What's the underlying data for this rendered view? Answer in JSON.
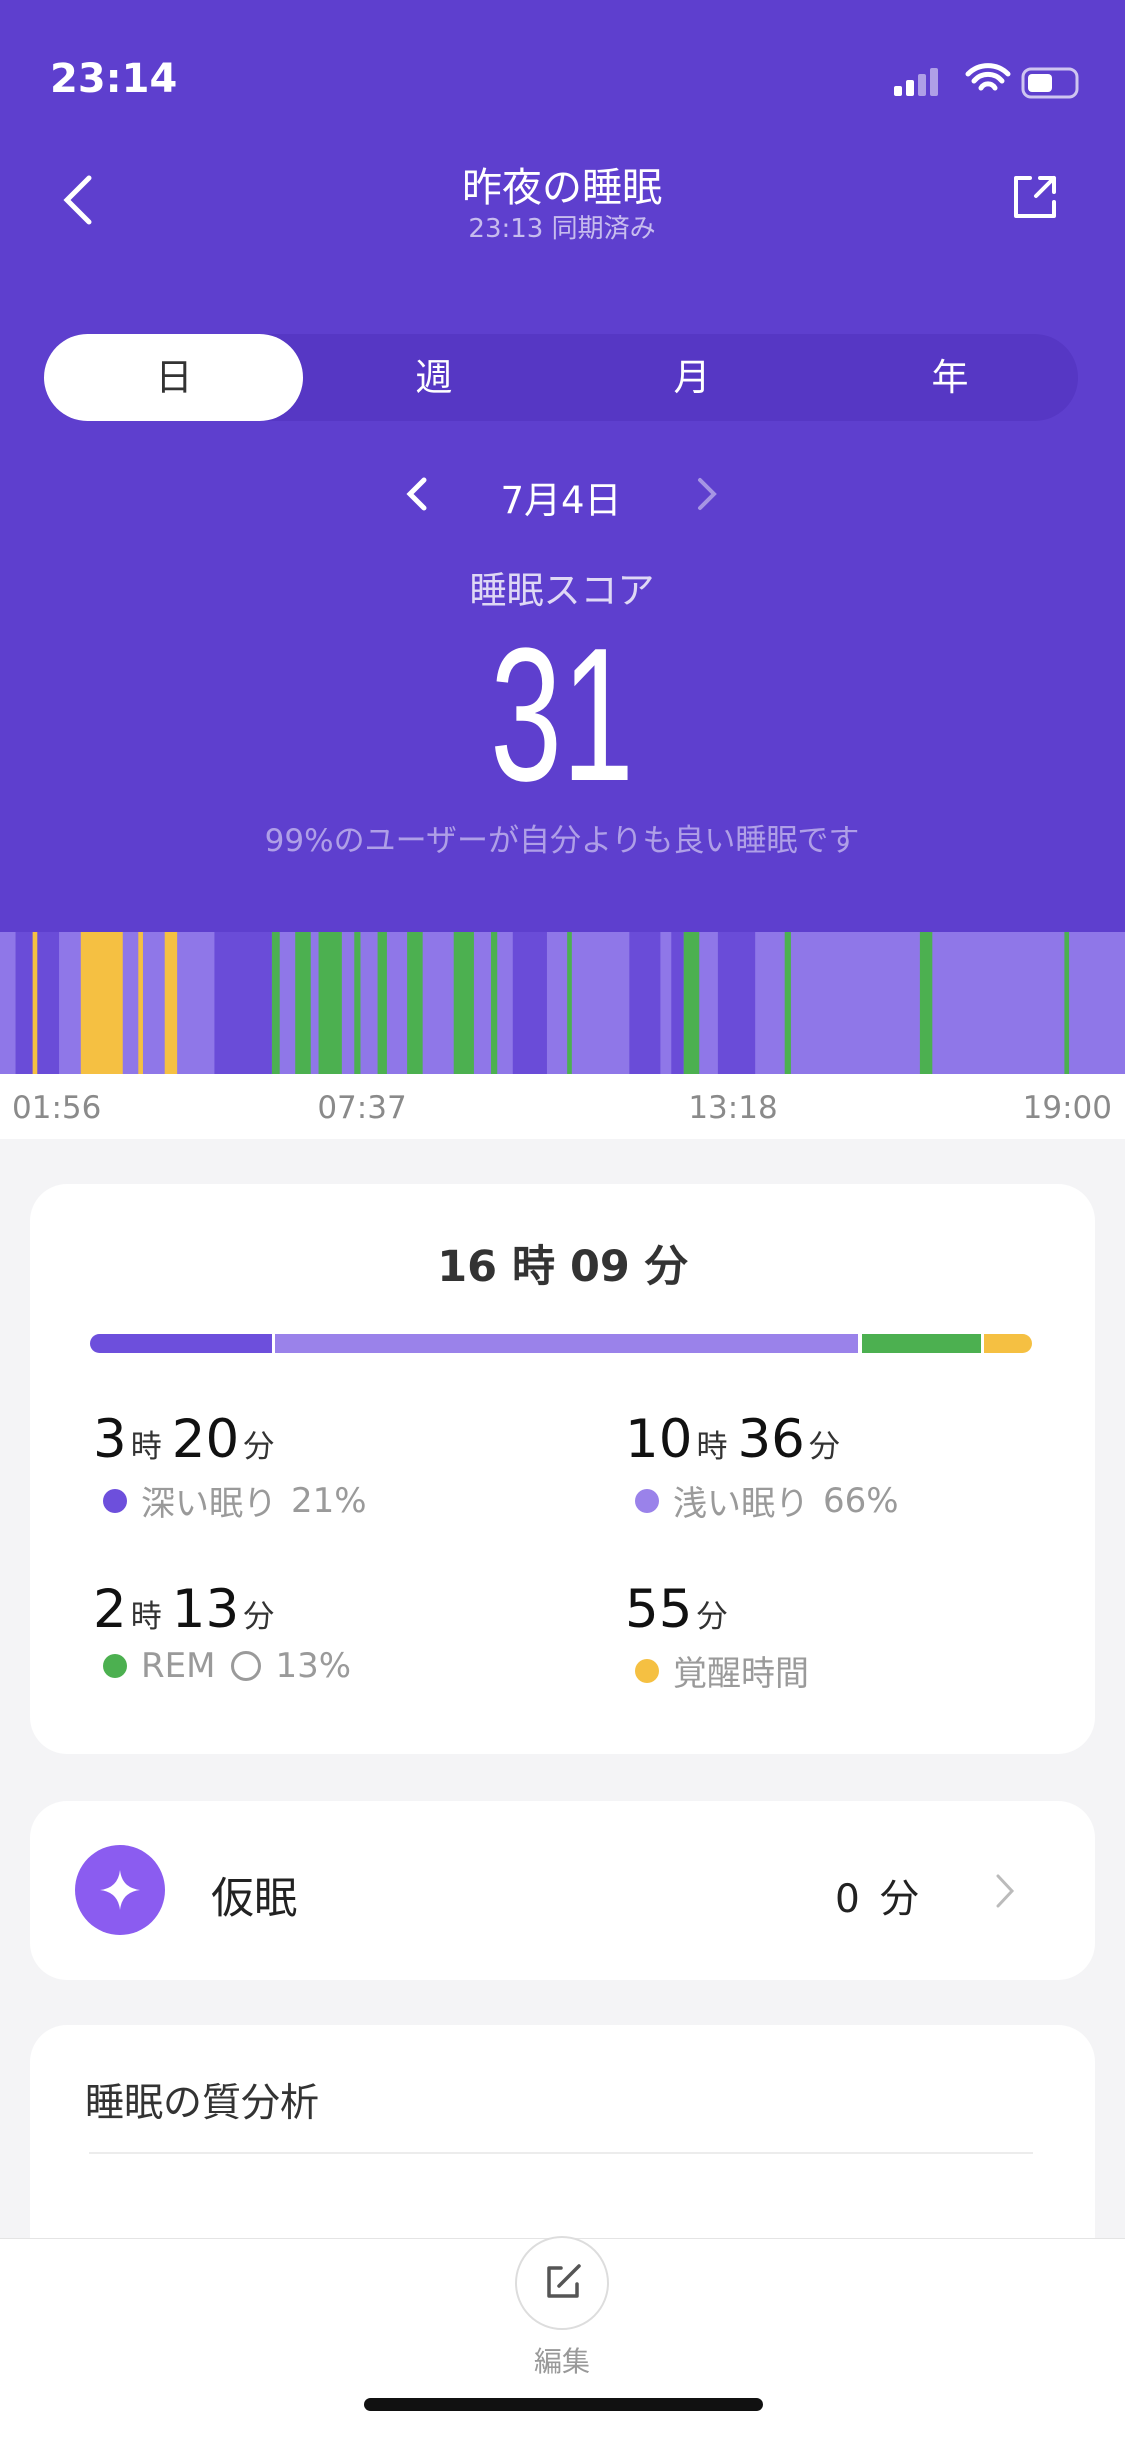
{
  "status_bar": {
    "time": "23:14"
  },
  "header": {
    "title": "昨夜の睡眠",
    "subtitle": "23:13 同期済み"
  },
  "tabs": [
    "日",
    "週",
    "月",
    "年"
  ],
  "date": "7月4日",
  "score": {
    "label": "睡眠スコア",
    "value": 31,
    "comparison": "99%のユーザーが自分よりも良い睡眠です"
  },
  "timeline": {
    "times": [
      "01:56",
      "07:37",
      "13:18",
      "19:00"
    ]
  },
  "summary": {
    "total": "16 時 09 分",
    "hour_unit": "時",
    "minute_unit": "分",
    "stages": [
      {
        "name": "深い眠り",
        "hours": 3,
        "minutes": 20,
        "percent": "21%",
        "color": "#6d4fdc"
      },
      {
        "name": "浅い眠り",
        "hours": 10,
        "minutes": 36,
        "percent": "66%",
        "color": "#9a82ea"
      },
      {
        "name": "REM",
        "hours": 2,
        "minutes": 13,
        "percent": "13%",
        "color": "#4cb050"
      },
      {
        "name": "覚醒時間",
        "minutes": 55,
        "color": "#f5c042"
      }
    ]
  },
  "nap": {
    "label": "仮眠",
    "value": 0,
    "unit": "分"
  },
  "analysis": {
    "title": "睡眠の質分析"
  },
  "footer": {
    "edit": "編集"
  }
}
